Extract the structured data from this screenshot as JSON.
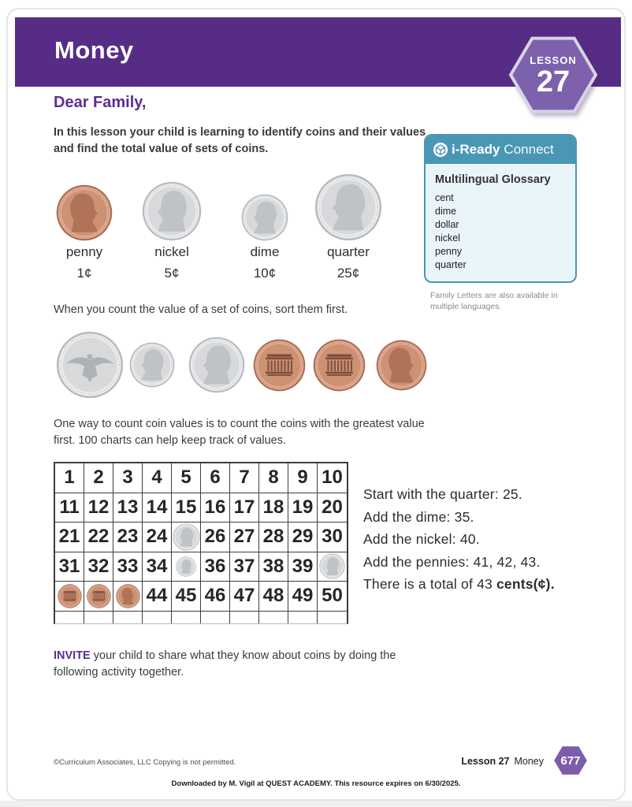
{
  "header": {
    "title": "Money",
    "lesson_label": "LESSON",
    "lesson_number": "27"
  },
  "greeting": "Dear Family,",
  "intro": "In this lesson your child is learning to identify coins and their values and find the total value of sets of coins.",
  "coin_key": [
    {
      "name": "penny",
      "value": "1¢",
      "type": "penny-front"
    },
    {
      "name": "nickel",
      "value": "5¢",
      "type": "nickel-front"
    },
    {
      "name": "dime",
      "value": "10¢",
      "type": "dime-front"
    },
    {
      "name": "quarter",
      "value": "25¢",
      "type": "quarter-front"
    }
  ],
  "connect_box": {
    "brand_bold": "i-Ready",
    "brand_light": "Connect",
    "glossary_title": "Multilingual Glossary",
    "glossary_items": [
      "cent",
      "dime",
      "dollar",
      "nickel",
      "penny",
      "quarter"
    ],
    "note": "Family Letters are also available in multiple languages."
  },
  "sort_text": "When you count the value of a set of coins, sort them first.",
  "sorted_coins": [
    "quarter-back",
    "dime-front",
    "nickel-front",
    "penny-back",
    "penny-back",
    "penny-front"
  ],
  "count_text": "One way to count coin values is to count the coins with the greatest value first. 100 charts can help keep track of values.",
  "hundred_chart": {
    "rows": [
      [
        "1",
        "2",
        "3",
        "4",
        "5",
        "6",
        "7",
        "8",
        "9",
        "10"
      ],
      [
        "11",
        "12",
        "13",
        "14",
        "15",
        "16",
        "17",
        "18",
        "19",
        "20"
      ],
      [
        "21",
        "22",
        "23",
        "24",
        {
          "coin": "quarter-front"
        },
        "26",
        "27",
        "28",
        "29",
        "30"
      ],
      [
        "31",
        "32",
        "33",
        "34",
        {
          "coin": "dime-front"
        },
        "36",
        "37",
        "38",
        "39",
        {
          "coin": "nickel-front"
        }
      ],
      [
        {
          "coin": "penny-back"
        },
        {
          "coin": "penny-back"
        },
        {
          "coin": "penny-front"
        },
        "44",
        "45",
        "46",
        "47",
        "48",
        "49",
        "50"
      ]
    ]
  },
  "steps": [
    {
      "text": "Start with the quarter: 25."
    },
    {
      "text": "Add the dime: 35."
    },
    {
      "text": "Add the nickel: 40."
    },
    {
      "text": "Add the pennies: 41, 42, 43."
    },
    {
      "text": "There is a total of 43 ",
      "bold": "cents(¢)."
    }
  ],
  "invite": {
    "keyword": "INVITE",
    "text": " your child to share what they know about coins by doing the following activity together."
  },
  "footer": {
    "copyright": "©Curriculum Associates, LLC  Copying is not permitted.",
    "lesson_label": "Lesson 27",
    "lesson_title": "Money",
    "page_number": "677"
  },
  "download_notice": "Downloaded by M. Vigil at QUEST ACADEMY. This resource expires on 6/30/2025.",
  "colors": {
    "header_purple": "#572c87",
    "badge_purple": "#7d61ad",
    "accent_purple": "#5c2e91",
    "connect_teal": "#4a96b5",
    "connect_panel_blue": "#eaf5fa",
    "coin_copper": "#cd9174",
    "coin_silver": "#d8d9db"
  }
}
